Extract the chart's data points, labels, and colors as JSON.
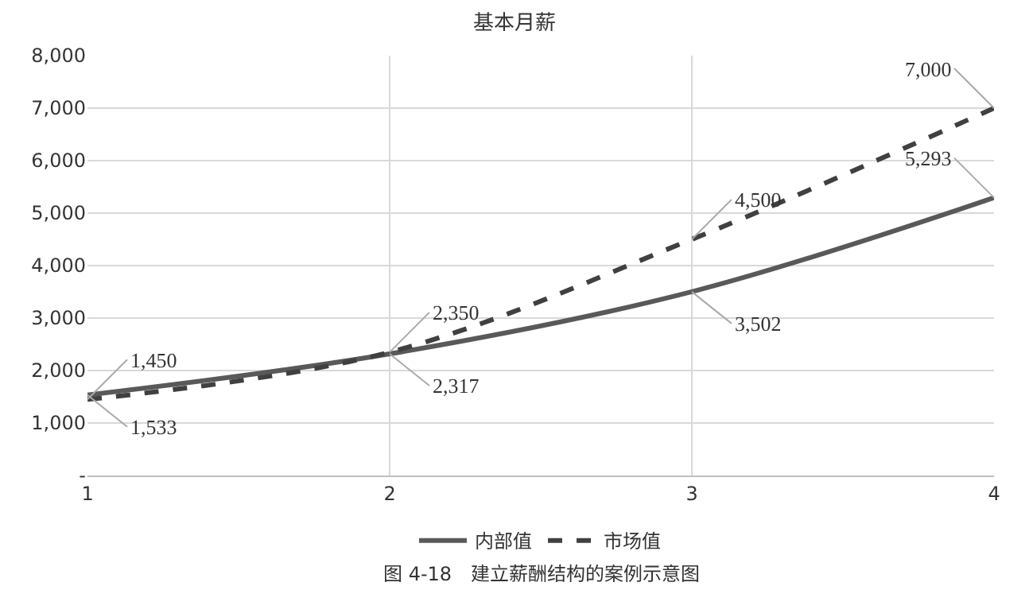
{
  "chart_data": {
    "type": "line",
    "title": "基本月薪",
    "x": [
      1,
      2,
      3,
      4
    ],
    "series": [
      {
        "name": "内部值",
        "color": "#595959",
        "line_style": "solid",
        "values": [
          1533,
          2317,
          3502,
          5293
        ],
        "value_labels": [
          "1,533",
          "2,317",
          "3,502",
          "5,293"
        ]
      },
      {
        "name": "市场值",
        "color": "#404040",
        "line_style": "dashed",
        "values": [
          1450,
          2350,
          4500,
          7000
        ],
        "value_labels": [
          "1,450",
          "2,350",
          "4,500",
          "7,000"
        ]
      }
    ],
    "xlim": [
      1,
      4
    ],
    "xticks": [
      1,
      2,
      3,
      4
    ],
    "ylim": [
      0,
      8000
    ],
    "yticks": [
      {
        "value": 0,
        "label": "-"
      },
      {
        "value": 1000,
        "label": "1,000"
      },
      {
        "value": 2000,
        "label": "2,000"
      },
      {
        "value": 3000,
        "label": "3,000"
      },
      {
        "value": 4000,
        "label": "4,000"
      },
      {
        "value": 5000,
        "label": "5,000"
      },
      {
        "value": 6000,
        "label": "6,000"
      },
      {
        "value": 7000,
        "label": "7,000"
      },
      {
        "value": 8000,
        "label": "8,000"
      }
    ],
    "grid": true,
    "legend": "bottom",
    "marker": "none",
    "annotations": [
      "图 4-18　建立薪酬结构的案例示意图"
    ]
  }
}
